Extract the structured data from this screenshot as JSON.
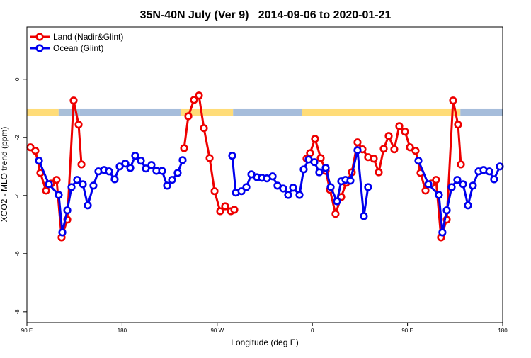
{
  "chart_data": {
    "type": "line",
    "title": "35N-40N July (Ver 9)   2014-09-06 to 2020-01-21",
    "x_label": "Longitude (deg E)",
    "y_label": "XCO2 - MLO trend (ppm)",
    "xlim": [
      90,
      540
    ],
    "xticks": [
      {
        "value": 90,
        "label": "90 E"
      },
      {
        "value": 180,
        "label": "180"
      },
      {
        "value": 270,
        "label": "90 W"
      },
      {
        "value": 360,
        "label": "0"
      },
      {
        "value": 450,
        "label": "90 E"
      },
      {
        "value": 540,
        "label": "180"
      }
    ],
    "ylim": [
      -8.37,
      1.8
    ],
    "yticks": [
      0,
      -2,
      -4,
      -6,
      -8
    ],
    "legend": "top-left",
    "surface_band": {
      "y": -1.15,
      "segments": [
        {
          "from": 90,
          "to": 120,
          "color": "#ffdc78"
        },
        {
          "from": 120,
          "to": 140,
          "color": "#a9bfd8"
        },
        {
          "from": 140,
          "to": 236,
          "color": "#a6bddb"
        },
        {
          "from": 236,
          "to": 285,
          "color": "#ffdc78"
        },
        {
          "from": 285,
          "to": 350,
          "color": "#a6bddb"
        },
        {
          "from": 350,
          "to": 500,
          "color": "#ffdc78"
        },
        {
          "from": 500,
          "to": 540,
          "color": "#a6bddb"
        }
      ]
    },
    "series": [
      {
        "name": "Land (Nadir&Glint)",
        "color": "#ee0000",
        "x": [
          93.3,
          98.0,
          102.7,
          108.1,
          112.8,
          118.1,
          122.8,
          128.2,
          134.2,
          138.9,
          141.6,
          null,
          238.7,
          242.7,
          248.0,
          252.7,
          257.4,
          262.8,
          267.5,
          272.8,
          277.5,
          282.9,
          286.2,
          null,
          354.5,
          357.8,
          362.5,
          367.9,
          372.6,
          376.6,
          381.9,
          387.3,
          392.0,
          397.3,
          402.7,
          407.4,
          412.7,
          418.1,
          422.8,
          427.5,
          432.2,
          437.5,
          442.2,
          447.6,
          452.3,
          457.6,
          462.3,
          467.0,
          472.4,
          477.0,
          481.7,
          487.1,
          493.1,
          497.8,
          500.5
        ],
        "values": [
          -2.34,
          -2.46,
          -3.22,
          -3.83,
          -3.59,
          -3.46,
          -5.44,
          -4.83,
          -0.73,
          -1.56,
          -2.93,
          null,
          -2.37,
          -1.27,
          -0.71,
          -0.56,
          -1.68,
          -2.71,
          -3.85,
          -4.54,
          -4.37,
          -4.54,
          -4.49,
          null,
          -2.73,
          -2.54,
          -2.05,
          -2.71,
          -3.15,
          -3.8,
          -4.63,
          -4.05,
          -3.56,
          -3.2,
          -2.17,
          -2.41,
          -2.68,
          -2.73,
          -3.2,
          -2.39,
          -1.95,
          -2.41,
          -1.61,
          -1.8,
          -2.34,
          -2.46,
          -3.22,
          -3.83,
          -3.59,
          -3.46,
          -5.44,
          -4.83,
          -0.73,
          -1.56,
          -2.93
        ]
      },
      {
        "name": "Ocean (Glint)",
        "color": "#0000ee",
        "x": [
          101.4,
          110.8,
          120.1,
          123.5,
          128.2,
          132.2,
          137.5,
          142.9,
          147.6,
          152.9,
          157.6,
          163.0,
          167.7,
          173.0,
          177.7,
          183.1,
          187.8,
          192.4,
          197.8,
          202.5,
          207.8,
          212.5,
          217.9,
          222.6,
          227.3,
          232.6,
          237.3,
          null,
          284.2,
          287.6,
          292.9,
          297.6,
          302.3,
          307.6,
          312.3,
          317.0,
          322.4,
          327.0,
          332.4,
          337.1,
          341.8,
          347.8,
          351.8,
          356.5,
          361.9,
          366.5,
          372.6,
          377.3,
          383.3,
          387.3,
          391.3,
          396.0,
          402.7,
          408.7,
          412.7,
          null,
          460.3,
          469.7,
          479.7,
          483.0,
          487.1,
          491.8,
          497.1,
          502.5,
          507.2,
          511.8,
          517.2,
          521.9,
          527.3,
          531.9,
          537.3
        ],
        "values": [
          -2.8,
          -3.61,
          -3.98,
          -5.27,
          -4.51,
          -3.71,
          -3.46,
          -3.61,
          -4.34,
          -3.66,
          -3.17,
          -3.12,
          -3.17,
          -3.44,
          -3.0,
          -2.9,
          -3.05,
          -2.63,
          -2.8,
          -3.07,
          -2.95,
          -3.15,
          -3.15,
          -3.66,
          -3.46,
          -3.22,
          -2.78,
          null,
          -2.63,
          -3.9,
          -3.85,
          -3.71,
          -3.27,
          -3.37,
          -3.39,
          -3.41,
          -3.34,
          -3.66,
          -3.76,
          -3.98,
          -3.73,
          -3.98,
          -3.1,
          -2.76,
          -2.85,
          -3.2,
          -3.05,
          -3.71,
          -4.2,
          -3.51,
          -3.46,
          -3.49,
          -2.44,
          -4.71,
          -3.71,
          null,
          -2.8,
          -3.61,
          -3.98,
          -5.27,
          -4.51,
          -3.71,
          -3.46,
          -3.61,
          -4.34,
          -3.66,
          -3.17,
          -3.12,
          -3.17,
          -3.44,
          -3.0
        ]
      }
    ]
  }
}
